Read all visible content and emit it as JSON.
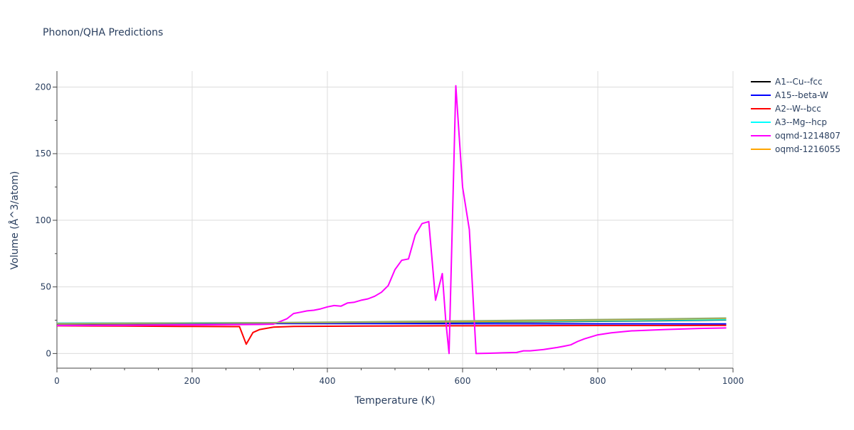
{
  "chart_data": {
    "type": "line",
    "title": "Phonon/QHA Predictions",
    "xlabel": "Temperature (K)",
    "ylabel": "Volume (Å^3/atom)",
    "xlim": [
      0,
      1000
    ],
    "ylim": [
      -11,
      212
    ],
    "x_ticks": [
      0,
      200,
      400,
      600,
      800,
      1000
    ],
    "y_ticks": [
      0,
      50,
      100,
      150,
      200
    ],
    "grid": true,
    "legend_position": "top-right",
    "series": [
      {
        "name": "A1--Cu--fcc",
        "color": "#000000",
        "x": [
          0,
          100,
          200,
          300,
          400,
          500,
          600,
          700,
          800,
          900,
          990
        ],
        "y": [
          22.3,
          22.4,
          22.5,
          22.7,
          22.9,
          23.2,
          23.5,
          23.8,
          24.2,
          24.7,
          25.2
        ]
      },
      {
        "name": "A15--beta-W",
        "color": "#0000ff",
        "x": [
          0,
          200,
          400,
          600,
          800,
          990
        ],
        "y": [
          22.6,
          22.6,
          22.5,
          22.4,
          22.3,
          22.2
        ]
      },
      {
        "name": "A2--W--bcc",
        "color": "#ff0000",
        "x": [
          0,
          100,
          200,
          260,
          270,
          280,
          290,
          300,
          320,
          350,
          400,
          500,
          600,
          700,
          800,
          900,
          990
        ],
        "y": [
          20.8,
          20.6,
          20.3,
          20.2,
          20.2,
          7.0,
          15.8,
          18.0,
          19.8,
          20.3,
          20.5,
          20.7,
          20.8,
          20.9,
          21.0,
          21.0,
          21.1
        ]
      },
      {
        "name": "A3--Mg--hcp",
        "color": "#00ffff",
        "x": [
          0,
          200,
          400,
          600,
          800,
          990
        ],
        "y": [
          22.8,
          23.0,
          23.3,
          23.8,
          24.5,
          25.5
        ]
      },
      {
        "name": "oqmd-1214807",
        "color": "#ff00ff",
        "x": [
          0,
          100,
          200,
          300,
          320,
          330,
          340,
          350,
          360,
          370,
          380,
          390,
          400,
          410,
          420,
          430,
          440,
          450,
          460,
          470,
          480,
          490,
          500,
          510,
          520,
          530,
          540,
          550,
          560,
          570,
          575,
          580,
          590,
          600,
          610,
          620,
          640,
          660,
          680,
          690,
          700,
          720,
          740,
          750,
          760,
          770,
          780,
          800,
          820,
          850,
          900,
          950,
          990
        ],
        "y": [
          21.0,
          21.2,
          21.5,
          21.8,
          22.0,
          24.0,
          26.0,
          30.0,
          31.0,
          32.0,
          32.5,
          33.5,
          35.0,
          36.0,
          35.5,
          38.0,
          38.5,
          40.0,
          41.0,
          43.0,
          46.0,
          51.0,
          63.0,
          70.0,
          71.0,
          89.0,
          97.5,
          99.0,
          40.0,
          60.0,
          25.0,
          0.0,
          201.0,
          125.0,
          93.0,
          0.0,
          0.2,
          0.5,
          0.8,
          2.0,
          2.0,
          3.0,
          4.5,
          5.5,
          6.5,
          9.0,
          11.0,
          14.0,
          15.5,
          17.0,
          18.0,
          18.8,
          19.2
        ]
      },
      {
        "name": "oqmd-1216055",
        "color": "#ffa500",
        "x": [
          0,
          200,
          400,
          600,
          800,
          990
        ],
        "y": [
          22.5,
          22.8,
          23.3,
          24.0,
          25.0,
          26.3
        ]
      },
      {
        "name": "",
        "color": "#8fae6e",
        "x": [
          0,
          100,
          200,
          300,
          400,
          500,
          600,
          700,
          800,
          900,
          990
        ],
        "y": [
          22.6,
          22.7,
          22.9,
          23.1,
          23.5,
          24.0,
          24.5,
          25.0,
          25.5,
          26.0,
          26.6
        ]
      }
    ]
  }
}
